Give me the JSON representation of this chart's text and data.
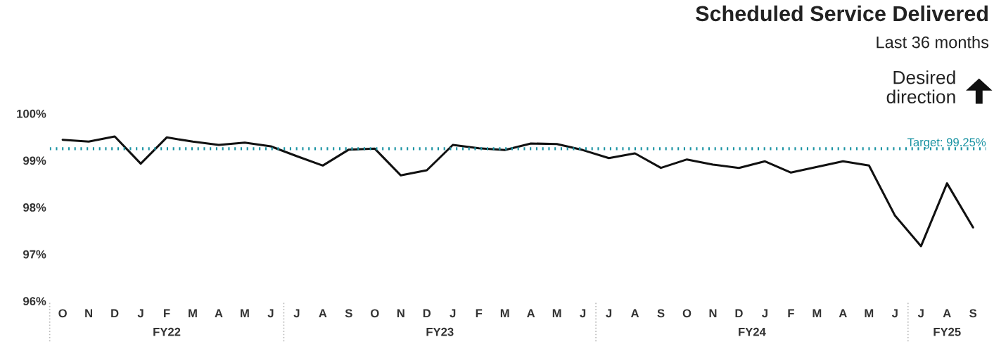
{
  "chart_data": {
    "type": "line",
    "title": "Scheduled Service Delivered",
    "subtitle": "Last 36 months",
    "categories": [
      "O",
      "N",
      "D",
      "J",
      "F",
      "M",
      "A",
      "M",
      "J",
      "J",
      "A",
      "S",
      "O",
      "N",
      "D",
      "J",
      "F",
      "M",
      "A",
      "M",
      "J",
      "J",
      "A",
      "S",
      "O",
      "N",
      "D",
      "J",
      "F",
      "M",
      "A",
      "M",
      "J",
      "J",
      "A",
      "S"
    ],
    "series": [
      {
        "color": "#111111",
        "values": [
          99.44,
          99.4,
          99.51,
          98.93,
          99.49,
          99.4,
          99.33,
          99.38,
          99.3,
          99.09,
          98.89,
          99.23,
          99.25,
          98.68,
          98.79,
          99.33,
          99.26,
          99.22,
          99.36,
          99.35,
          99.22,
          99.05,
          99.15,
          98.84,
          99.02,
          98.91,
          98.84,
          98.98,
          98.74,
          98.86,
          98.98,
          98.89,
          97.82,
          97.17,
          98.51,
          97.57
        ]
      }
    ],
    "ylim": [
      96,
      100
    ],
    "yticks": [
      {
        "value": 96,
        "label": "96%"
      },
      {
        "value": 97,
        "label": "97%"
      },
      {
        "value": 98,
        "label": "98%"
      },
      {
        "value": 99,
        "label": "99%"
      },
      {
        "value": 100,
        "label": "100%"
      }
    ],
    "ref_lines": [
      {
        "axis": "y",
        "value": 99.25,
        "label": "Target: 99.25%",
        "color": "#1a93a3",
        "line_style": "dotted"
      }
    ],
    "annotations": [
      "Desired\ndirection",
      "FY22",
      "FY23",
      "FY24",
      "FY25"
    ],
    "grid": false,
    "marker": "none",
    "line_style": "solid"
  }
}
